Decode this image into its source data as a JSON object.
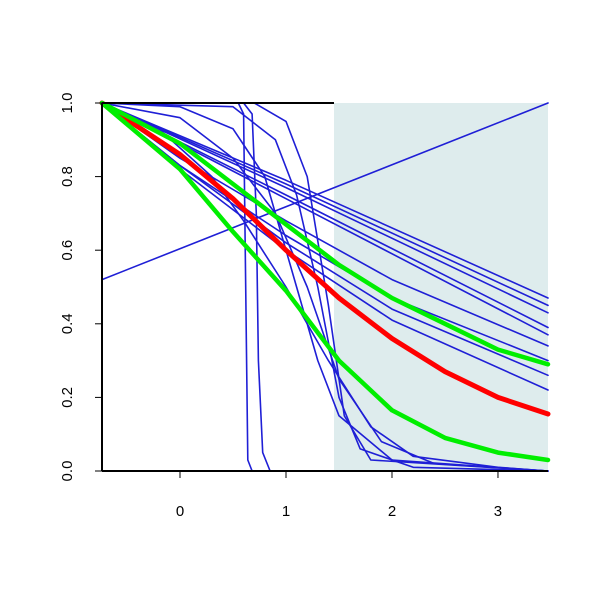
{
  "chart_data": {
    "type": "line",
    "xlim": [
      -0.736,
      3.472
    ],
    "ylim": [
      0,
      1
    ],
    "xticks": [
      0,
      1,
      2,
      3
    ],
    "yticks": [
      {
        "value": 0,
        "label": "0.0"
      },
      {
        "value": 0.2,
        "label": "0.2"
      },
      {
        "value": 0.4,
        "label": "0.4"
      },
      {
        "value": 0.6,
        "label": "0.6"
      },
      {
        "value": 0.8,
        "label": "0.8"
      },
      {
        "value": 1,
        "label": "1.0"
      }
    ],
    "shaded_region": {
      "x": [
        1.453,
        3.472
      ],
      "color": "#deeced"
    },
    "series": [
      {
        "color": "#1f1fd6",
        "width": 1.6,
        "x": [
          -0.736,
          3.472
        ],
        "values": [
          0.52,
          1.0
        ]
      },
      {
        "color": "#1f1fd6",
        "width": 1.6,
        "x": [
          -0.736,
          1.0,
          3.472
        ],
        "values": [
          1,
          0.79,
          0.47
        ]
      },
      {
        "color": "#1f1fd6",
        "width": 1.6,
        "x": [
          -0.736,
          1.0,
          3.472
        ],
        "values": [
          1,
          0.78,
          0.45
        ]
      },
      {
        "color": "#1f1fd6",
        "width": 1.6,
        "x": [
          -0.736,
          1.0,
          3.472
        ],
        "values": [
          1,
          0.77,
          0.43
        ]
      },
      {
        "color": "#1f1fd6",
        "width": 1.6,
        "x": [
          -0.736,
          1.0,
          3.472
        ],
        "values": [
          1,
          0.75,
          0.39
        ]
      },
      {
        "color": "#1f1fd6",
        "width": 1.6,
        "x": [
          -0.736,
          1.0,
          3.472
        ],
        "values": [
          1,
          0.74,
          0.37
        ]
      },
      {
        "color": "#1f1fd6",
        "width": 1.6,
        "x": [
          -0.736,
          0.0,
          1.0,
          2.0,
          3.472
        ],
        "values": [
          1,
          0.85,
          0.68,
          0.52,
          0.34
        ]
      },
      {
        "color": "#1f1fd6",
        "width": 1.6,
        "x": [
          -0.736,
          0.0,
          1.0,
          2.0,
          3.472
        ],
        "values": [
          1,
          0.83,
          0.64,
          0.47,
          0.3
        ]
      },
      {
        "color": "#1f1fd6",
        "width": 1.6,
        "x": [
          -0.736,
          0.0,
          1.0,
          2.0,
          3.472
        ],
        "values": [
          1,
          0.83,
          0.62,
          0.44,
          0.26
        ]
      },
      {
        "color": "#1f1fd6",
        "width": 1.6,
        "x": [
          -0.736,
          0.0,
          1.0,
          2.0,
          3.472
        ],
        "values": [
          1,
          0.82,
          0.6,
          0.41,
          0.22
        ]
      },
      {
        "color": "#1f1fd6",
        "width": 1.6,
        "x": [
          -0.736,
          0.55,
          0.6,
          0.62,
          0.64,
          0.68,
          3.472
        ],
        "values": [
          1,
          1,
          0.97,
          0.5,
          0.03,
          0,
          0
        ]
      },
      {
        "color": "#1f1fd6",
        "width": 1.6,
        "x": [
          -0.736,
          0.6,
          0.68,
          0.72,
          0.74,
          0.78,
          0.85,
          3.472
        ],
        "values": [
          1,
          1,
          0.97,
          0.7,
          0.3,
          0.05,
          0,
          0
        ]
      },
      {
        "color": "#1f1fd6",
        "width": 1.6,
        "x": [
          -0.736,
          0.0,
          0.5,
          0.8,
          1.0,
          1.1,
          1.3,
          1.5,
          2.0,
          3.472
        ],
        "values": [
          1,
          0.99,
          0.93,
          0.8,
          0.6,
          0.5,
          0.3,
          0.15,
          0.03,
          0
        ]
      },
      {
        "color": "#1f1fd6",
        "width": 1.6,
        "x": [
          -0.736,
          0.5,
          0.9,
          1.1,
          1.3,
          1.5,
          1.7,
          2.2,
          3.472
        ],
        "values": [
          1,
          0.99,
          0.9,
          0.75,
          0.5,
          0.2,
          0.06,
          0.01,
          0
        ]
      },
      {
        "color": "#1f1fd6",
        "width": 1.6,
        "x": [
          -0.736,
          0.7,
          1.0,
          1.2,
          1.4,
          1.55,
          1.8,
          3.472
        ],
        "values": [
          1,
          1,
          0.95,
          0.8,
          0.45,
          0.15,
          0.03,
          0
        ]
      },
      {
        "color": "#1f1fd6",
        "width": 1.6,
        "x": [
          -0.736,
          -0.2,
          0.3,
          0.6,
          1.0,
          1.4,
          1.8,
          2.2,
          3.0,
          3.472
        ],
        "values": [
          1,
          0.93,
          0.8,
          0.68,
          0.5,
          0.3,
          0.12,
          0.04,
          0.01,
          0
        ]
      },
      {
        "color": "#1f1fd6",
        "width": 1.6,
        "x": [
          -0.736,
          0.0,
          0.5,
          0.9,
          1.2,
          1.5,
          1.9,
          2.4,
          3.472
        ],
        "values": [
          1,
          0.96,
          0.85,
          0.7,
          0.5,
          0.25,
          0.08,
          0.02,
          0
        ]
      },
      {
        "color": "#ff0000",
        "width": 5,
        "x": [
          -0.736,
          0.0,
          0.5,
          1.0,
          1.5,
          2.0,
          2.5,
          3.0,
          3.472
        ],
        "values": [
          1,
          0.86,
          0.74,
          0.6,
          0.47,
          0.36,
          0.27,
          0.2,
          0.155
        ]
      },
      {
        "color": "#00ee00",
        "width": 4.5,
        "x": [
          -0.736,
          0.0,
          0.5,
          1.0,
          1.5,
          2.0,
          2.5,
          3.0,
          3.472
        ],
        "values": [
          1,
          0.82,
          0.65,
          0.49,
          0.3,
          0.165,
          0.09,
          0.05,
          0.03
        ]
      },
      {
        "color": "#00ee00",
        "width": 4.5,
        "x": [
          -0.736,
          0.0,
          0.5,
          1.0,
          1.5,
          2.0,
          2.5,
          3.0,
          3.472
        ],
        "values": [
          1,
          0.89,
          0.78,
          0.67,
          0.56,
          0.47,
          0.4,
          0.33,
          0.29
        ]
      }
    ]
  }
}
